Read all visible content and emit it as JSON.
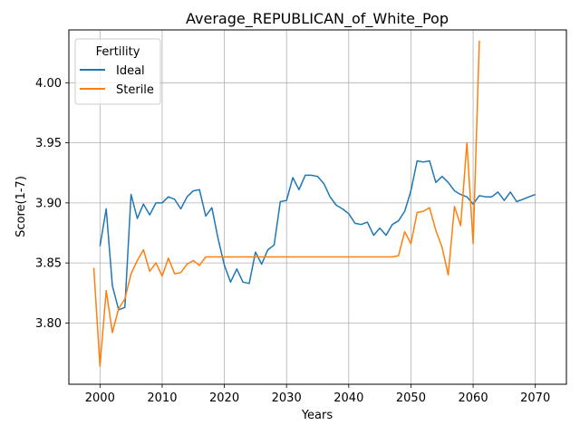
{
  "chart_data": {
    "type": "line",
    "title": "Average_REPUBLICAN_of_White_Pop",
    "xlabel": "Years",
    "ylabel": "Score(1-7)",
    "xlim": [
      1995,
      2075
    ],
    "ylim": [
      3.749,
      4.044
    ],
    "xticks": [
      2000,
      2010,
      2020,
      2030,
      2040,
      2050,
      2060,
      2070
    ],
    "yticks": [
      3.8,
      3.85,
      3.9,
      3.95,
      4.0
    ],
    "ytick_labels": [
      "3.80",
      "3.85",
      "3.90",
      "3.95",
      "4.00"
    ],
    "grid": true,
    "legend": {
      "title": "Fertility",
      "position": "top-left"
    },
    "series": [
      {
        "name": "Ideal",
        "color": "#1f77b4",
        "x": [
          2000,
          2001,
          2002,
          2003,
          2004,
          2005,
          2006,
          2007,
          2008,
          2009,
          2010,
          2011,
          2012,
          2013,
          2014,
          2015,
          2016,
          2017,
          2018,
          2019,
          2020,
          2021,
          2022,
          2023,
          2024,
          2025,
          2026,
          2027,
          2028,
          2029,
          2030,
          2031,
          2032,
          2033,
          2034,
          2035,
          2036,
          2037,
          2038,
          2039,
          2040,
          2041,
          2042,
          2043,
          2044,
          2045,
          2046,
          2047,
          2048,
          2049,
          2050,
          2051,
          2052,
          2053,
          2054,
          2055,
          2056,
          2057,
          2058,
          2059,
          2060,
          2061,
          2062,
          2063,
          2064,
          2065,
          2066,
          2067,
          2068,
          2069,
          2070
        ],
        "y": [
          3.864,
          3.895,
          3.831,
          3.811,
          3.813,
          3.907,
          3.887,
          3.899,
          3.89,
          3.9,
          3.9,
          3.905,
          3.903,
          3.895,
          3.905,
          3.91,
          3.911,
          3.889,
          3.896,
          3.87,
          3.848,
          3.834,
          3.845,
          3.834,
          3.833,
          3.859,
          3.849,
          3.861,
          3.865,
          3.901,
          3.902,
          3.921,
          3.911,
          3.923,
          3.923,
          3.922,
          3.916,
          3.905,
          3.898,
          3.895,
          3.891,
          3.883,
          3.882,
          3.884,
          3.873,
          3.879,
          3.873,
          3.882,
          3.885,
          3.893,
          3.91,
          3.935,
          3.934,
          3.935,
          3.917,
          3.922,
          3.917,
          3.91,
          3.907,
          3.905,
          3.899,
          3.906,
          3.905,
          3.905,
          3.909,
          3.902,
          3.909,
          3.901,
          3.903,
          3.905,
          3.907
        ]
      },
      {
        "name": "Sterile",
        "color": "#ff7f0e",
        "x": [
          1999,
          2000,
          2001,
          2002,
          2003,
          2004,
          2005,
          2006,
          2007,
          2008,
          2009,
          2010,
          2011,
          2012,
          2013,
          2014,
          2015,
          2016,
          2017,
          2018,
          2019,
          2020,
          2021,
          2022,
          2023,
          2024,
          2025,
          2026,
          2027,
          2028,
          2029,
          2030,
          2031,
          2032,
          2033,
          2034,
          2035,
          2036,
          2037,
          2038,
          2039,
          2040,
          2041,
          2042,
          2043,
          2044,
          2045,
          2046,
          2047,
          2048,
          2049,
          2050,
          2051,
          2052,
          2053,
          2054,
          2055,
          2056,
          2057,
          2058,
          2059,
          2060,
          2061
        ],
        "y": [
          3.846,
          3.764,
          3.827,
          3.792,
          3.812,
          3.82,
          3.841,
          3.852,
          3.861,
          3.843,
          3.85,
          3.839,
          3.854,
          3.841,
          3.842,
          3.849,
          3.852,
          3.848,
          3.855,
          3.855,
          3.855,
          3.855,
          3.855,
          3.855,
          3.855,
          3.855,
          3.855,
          3.855,
          3.855,
          3.855,
          3.855,
          3.855,
          3.855,
          3.855,
          3.855,
          3.855,
          3.855,
          3.855,
          3.855,
          3.855,
          3.855,
          3.855,
          3.855,
          3.855,
          3.855,
          3.855,
          3.855,
          3.855,
          3.855,
          3.856,
          3.876,
          3.866,
          3.892,
          3.893,
          3.896,
          3.877,
          3.863,
          3.84,
          3.897,
          3.881,
          3.95,
          3.866,
          4.035
        ]
      }
    ]
  }
}
